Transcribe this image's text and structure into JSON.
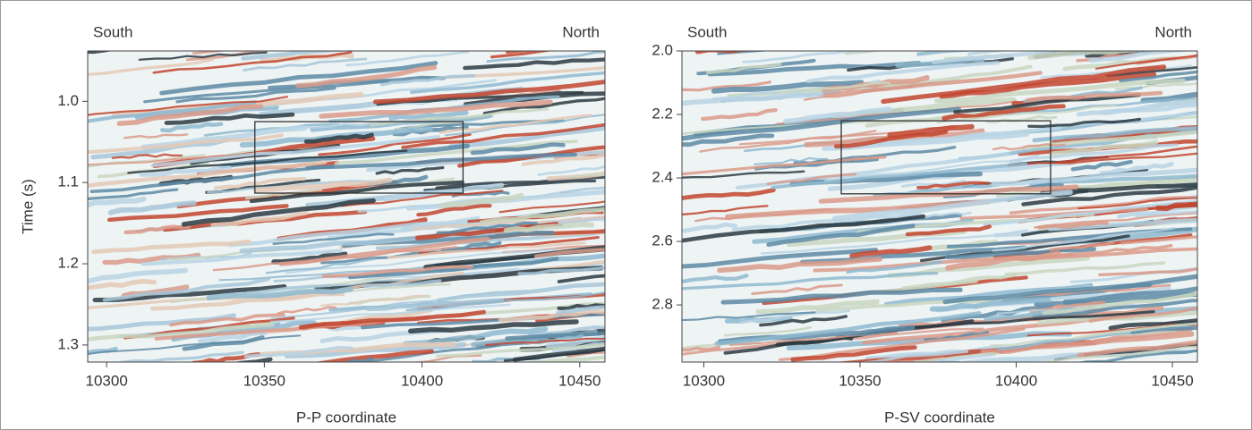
{
  "chart_data": [
    {
      "type": "seismic",
      "annotations": [
        "South",
        "North"
      ],
      "x_label": "P-P coordinate",
      "y_label": "Time (s)",
      "xlim": [
        10294,
        10458
      ],
      "xticks": [
        10300,
        10350,
        10400,
        10450
      ],
      "ylim": [
        0.938,
        1.321
      ],
      "yticks": [
        {
          "value": 1,
          "label": "1.0"
        },
        1.1,
        1.2,
        1.3
      ],
      "y_inverted": true,
      "box": {
        "x": [
          10347,
          10413
        ],
        "y": [
          1.025,
          1.113
        ]
      }
    },
    {
      "type": "seismic",
      "annotations": [
        "South",
        "North"
      ],
      "x_label": "P-SV coordinate",
      "xlim": [
        10293,
        10458
      ],
      "xticks": [
        10300,
        10350,
        10400,
        10450
      ],
      "ylim": [
        2.0,
        2.98
      ],
      "yticks": [
        {
          "value": 2,
          "label": "2.0"
        },
        2.2,
        2.4,
        2.6,
        2.8
      ],
      "y_inverted": true,
      "box": {
        "x": [
          10344,
          10411
        ],
        "y": [
          2.22,
          2.45
        ]
      }
    }
  ]
}
